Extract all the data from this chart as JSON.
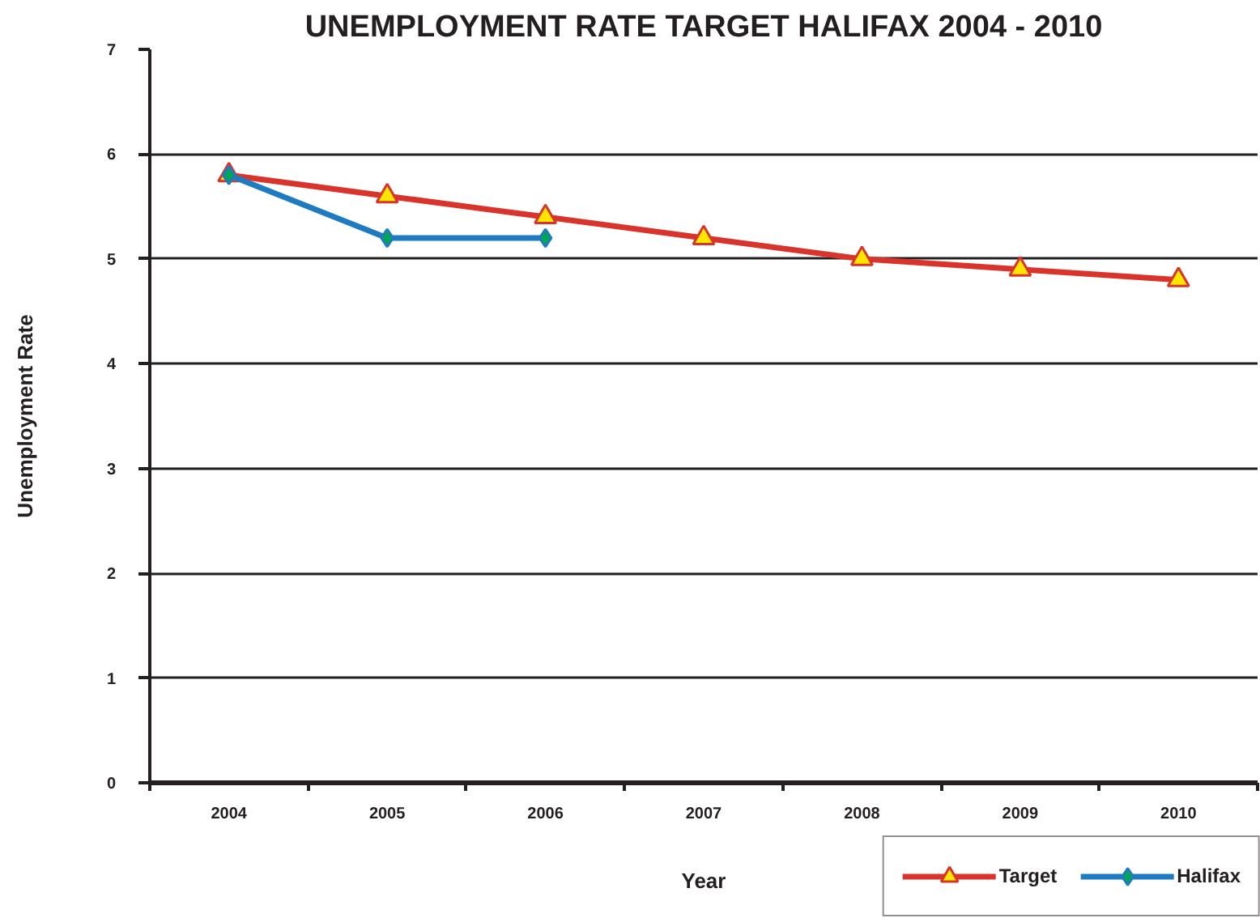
{
  "chart_data": {
    "type": "line",
    "title": "UNEMPLOYMENT RATE TARGET HALIFAX 2004 - 2010",
    "xlabel": "Year",
    "ylabel": "Unemployment Rate",
    "categories": [
      "2004",
      "2005",
      "2006",
      "2007",
      "2008",
      "2009",
      "2010"
    ],
    "series": [
      {
        "name": "Target",
        "color": "#d9342b",
        "marker": "triangle",
        "values": [
          5.8,
          5.6,
          5.4,
          5.2,
          5.0,
          4.9,
          4.8
        ]
      },
      {
        "name": "Halifax",
        "color": "#1f7bc1",
        "marker": "diamond",
        "values": [
          5.8,
          5.2,
          5.2,
          null,
          null,
          null,
          null
        ]
      }
    ],
    "ylim": [
      0,
      7
    ],
    "yticks": [
      0,
      1,
      2,
      3,
      4,
      5,
      6,
      7
    ],
    "grid": "y",
    "legend": "bottom right",
    "line_style": "solid"
  }
}
